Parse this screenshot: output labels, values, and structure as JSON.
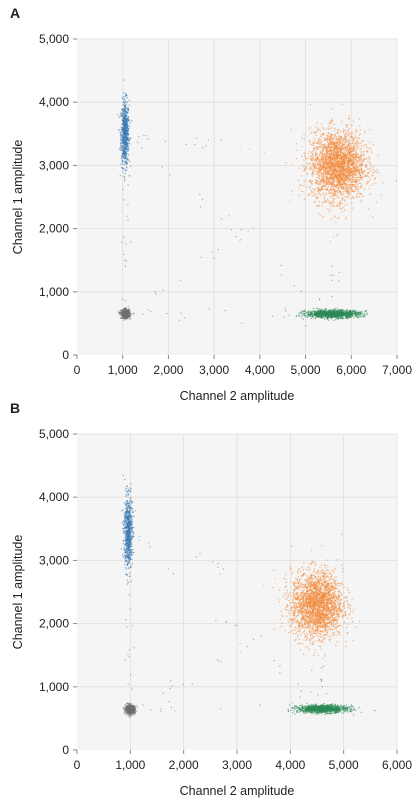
{
  "colors": {
    "background": "#f5f5f5",
    "grid": "#dedede",
    "blue_cluster": "#3a7ab0",
    "orange_cluster": "#f28a3c",
    "green_cluster": "#2e8b57",
    "gray_cluster": "#6f6f6f"
  },
  "chart_data": [
    {
      "type": "scatter",
      "panel_label": "A",
      "xlabel": "Channel 2 amplitude",
      "ylabel": "Channel 1 amplitude",
      "xlim": [
        0,
        7000
      ],
      "ylim": [
        0,
        5000
      ],
      "xticks": [
        0,
        1000,
        2000,
        3000,
        4000,
        5000,
        6000,
        7000
      ],
      "xtick_labels": [
        "0",
        "1,000",
        "2,000",
        "3,000",
        "4,000",
        "5,000",
        "6,000",
        "7,000"
      ],
      "yticks": [
        0,
        1000,
        2000,
        3000,
        4000,
        5000
      ],
      "ytick_labels": [
        "0",
        "1,000",
        "2,000",
        "3,000",
        "4,000",
        "5,000"
      ],
      "grid": true,
      "clusters": [
        {
          "color": "#3a7ab0",
          "center": [
            1050,
            3500
          ],
          "spread": [
            45,
            260
          ],
          "count": 700
        },
        {
          "color": "#f28a3c",
          "center": [
            5700,
            3000
          ],
          "spread": [
            300,
            270
          ],
          "count": 2600
        },
        {
          "color": "#2e8b57",
          "center": [
            5600,
            650
          ],
          "spread": [
            290,
            30
          ],
          "count": 1200
        },
        {
          "color": "#6f6f6f",
          "center": [
            1060,
            650
          ],
          "spread": [
            50,
            35
          ],
          "count": 500
        }
      ]
    },
    {
      "type": "scatter",
      "panel_label": "B",
      "xlabel": "Channel 2 amplitude",
      "ylabel": "Channel 1 amplitude",
      "xlim": [
        0,
        6000
      ],
      "ylim": [
        0,
        5000
      ],
      "xticks": [
        0,
        1000,
        2000,
        3000,
        4000,
        5000,
        6000
      ],
      "xtick_labels": [
        "0",
        "1,000",
        "2,000",
        "3,000",
        "4,000",
        "5,000",
        "6,000"
      ],
      "yticks": [
        0,
        1000,
        2000,
        3000,
        4000,
        5000
      ],
      "ytick_labels": [
        "0",
        "1,000",
        "2,000",
        "3,000",
        "4,000",
        "5,000"
      ],
      "grid": true,
      "clusters": [
        {
          "color": "#3a7ab0",
          "center": [
            960,
            3450
          ],
          "spread": [
            40,
            280
          ],
          "count": 700
        },
        {
          "color": "#f28a3c",
          "center": [
            4500,
            2300
          ],
          "spread": [
            240,
            260
          ],
          "count": 2400
        },
        {
          "color": "#2e8b57",
          "center": [
            4600,
            650
          ],
          "spread": [
            230,
            30
          ],
          "count": 1100
        },
        {
          "color": "#6f6f6f",
          "center": [
            1000,
            640
          ],
          "spread": [
            45,
            35
          ],
          "count": 500
        }
      ]
    }
  ]
}
